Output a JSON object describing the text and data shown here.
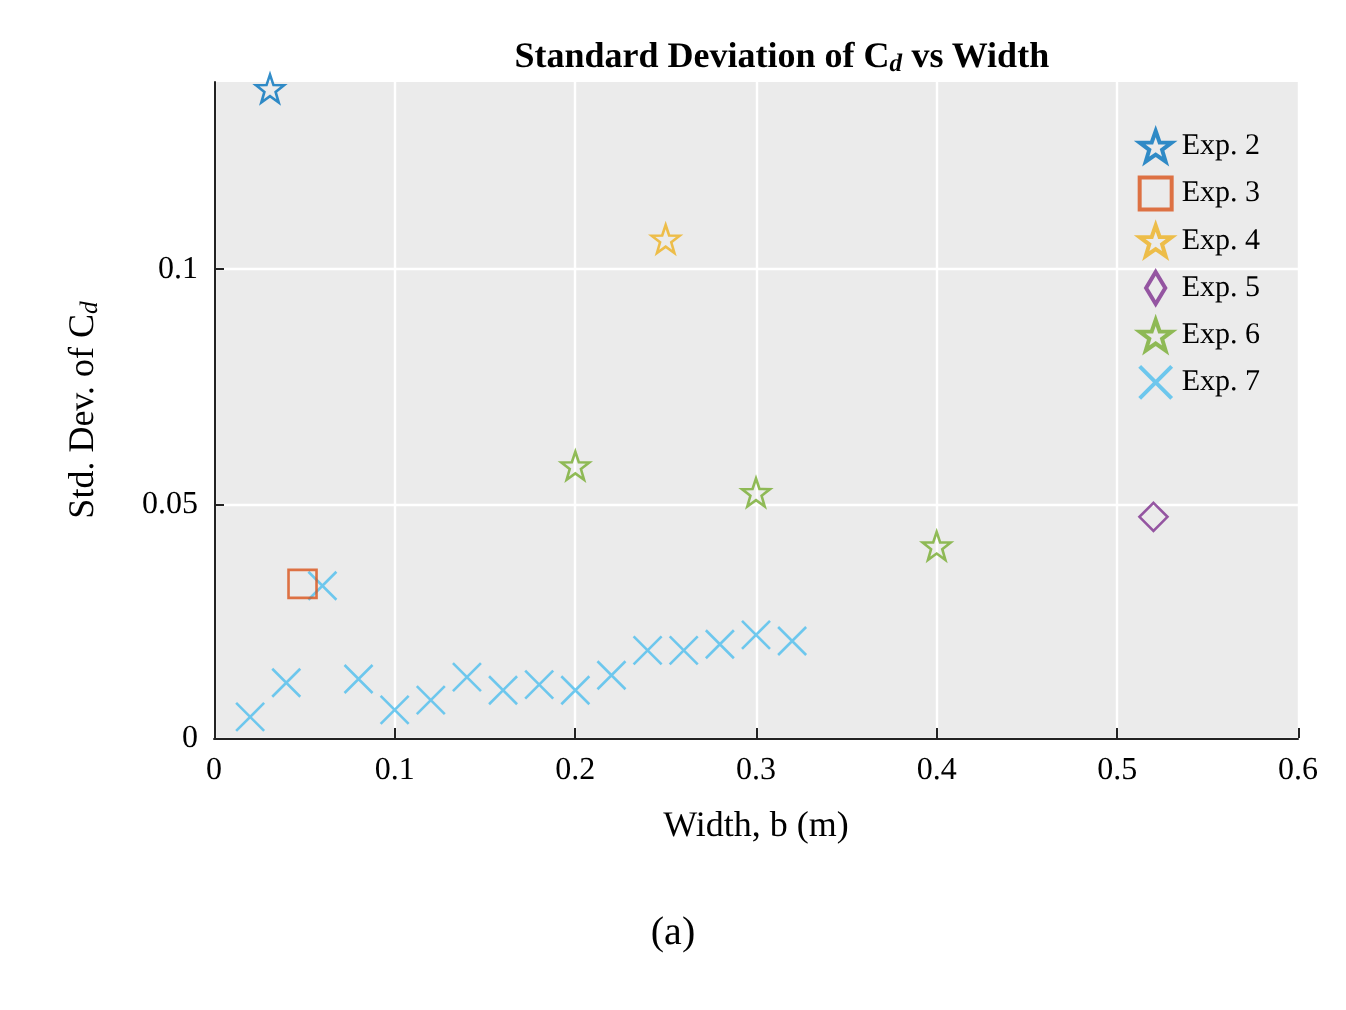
{
  "chart_data": {
    "type": "scatter",
    "title": "Standard Deviation of C$_{d}$ vs Width",
    "xlabel": "Width, b (m)",
    "ylabel": "Std. Dev. of C$_{d}$",
    "annotations": [
      "(a)"
    ],
    "xlim": [
      0,
      0.6
    ],
    "xticks": [
      0,
      0.1,
      0.2,
      0.3,
      0.4,
      0.5,
      0.6
    ],
    "ylim": [
      0,
      0.14
    ],
    "yticks": [
      0,
      0.05,
      0.1
    ],
    "grid": true,
    "legend": "top right",
    "series": [
      {
        "name": "Exp. 2",
        "color": "#0072bd",
        "marker": "star",
        "x": [
          0.031
        ],
        "values": [
          0.1386
        ]
      },
      {
        "name": "Exp. 3",
        "color": "#d95319",
        "marker": "square",
        "x": [
          0.049
        ],
        "values": [
          0.0329
        ]
      },
      {
        "name": "Exp. 4",
        "color": "#edb120",
        "marker": "star",
        "x": [
          0.25
        ],
        "values": [
          0.1065
        ]
      },
      {
        "name": "Exp. 5",
        "color": "#7e2f8e",
        "marker": "diamond",
        "x": [
          0.52
        ],
        "values": [
          0.0472
        ]
      },
      {
        "name": "Exp. 6",
        "color": "#77ac30",
        "marker": "star",
        "x": [
          0.2,
          0.3,
          0.4
        ],
        "values": [
          0.0581,
          0.0524,
          0.041
        ]
      },
      {
        "name": "Exp. 7",
        "color": "#4dbeee",
        "marker": "cross",
        "x": [
          0.02,
          0.04,
          0.06,
          0.08,
          0.1,
          0.12,
          0.14,
          0.16,
          0.18,
          0.2,
          0.22,
          0.24,
          0.26,
          0.28,
          0.3,
          0.32
        ],
        "values": [
          0.0045,
          0.0118,
          0.0325,
          0.0126,
          0.006,
          0.0081,
          0.013,
          0.0102,
          0.0114,
          0.0102,
          0.0134,
          0.0187,
          0.0187,
          0.02,
          0.022,
          0.0207
        ]
      }
    ]
  }
}
